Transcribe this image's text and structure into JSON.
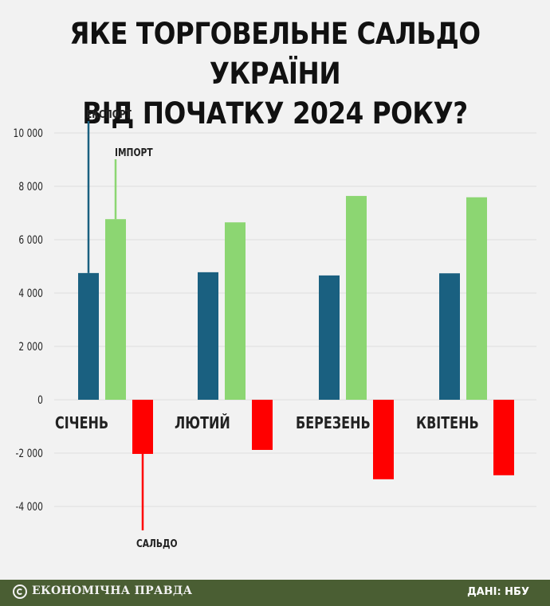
{
  "title_lines": [
    "ЯКЕ ТОРГОВЕЛЬНЕ САЛЬДО УКРАЇНИ",
    "ВІД ПОЧАТКУ 2024 РОКУ?"
  ],
  "footer": {
    "logo_text": "ЕКОНОМІЧНА ПРАВДА",
    "source": "ДАНІ: НБУ"
  },
  "colors": {
    "export": "#1a6080",
    "import": "#8cd672",
    "balance": "#ff0000",
    "grid": "#dddddd"
  },
  "chart_data": {
    "type": "bar",
    "categories": [
      "СІЧЕНЬ",
      "ЛЮТИЙ",
      "БЕРЕЗЕНЬ",
      "КВІТЕНЬ"
    ],
    "series": [
      {
        "name": "ЕКСПОРТ",
        "values": [
          4750,
          4780,
          4660,
          4740
        ]
      },
      {
        "name": "ІМПОРТ",
        "values": [
          6770,
          6650,
          7640,
          7590
        ]
      },
      {
        "name": "САЛЬДО",
        "values": [
          -2030,
          -1880,
          -2980,
          -2830
        ]
      }
    ],
    "ylim": [
      -5000,
      10500
    ],
    "yticks": [
      10000,
      8000,
      6000,
      4000,
      2000,
      0,
      -2000,
      -4000
    ],
    "ytick_labels": [
      "10 000",
      "8 000",
      "6 000",
      "4 000",
      "2 000",
      "0",
      "-2 000",
      "-4 000"
    ],
    "grid": true
  }
}
